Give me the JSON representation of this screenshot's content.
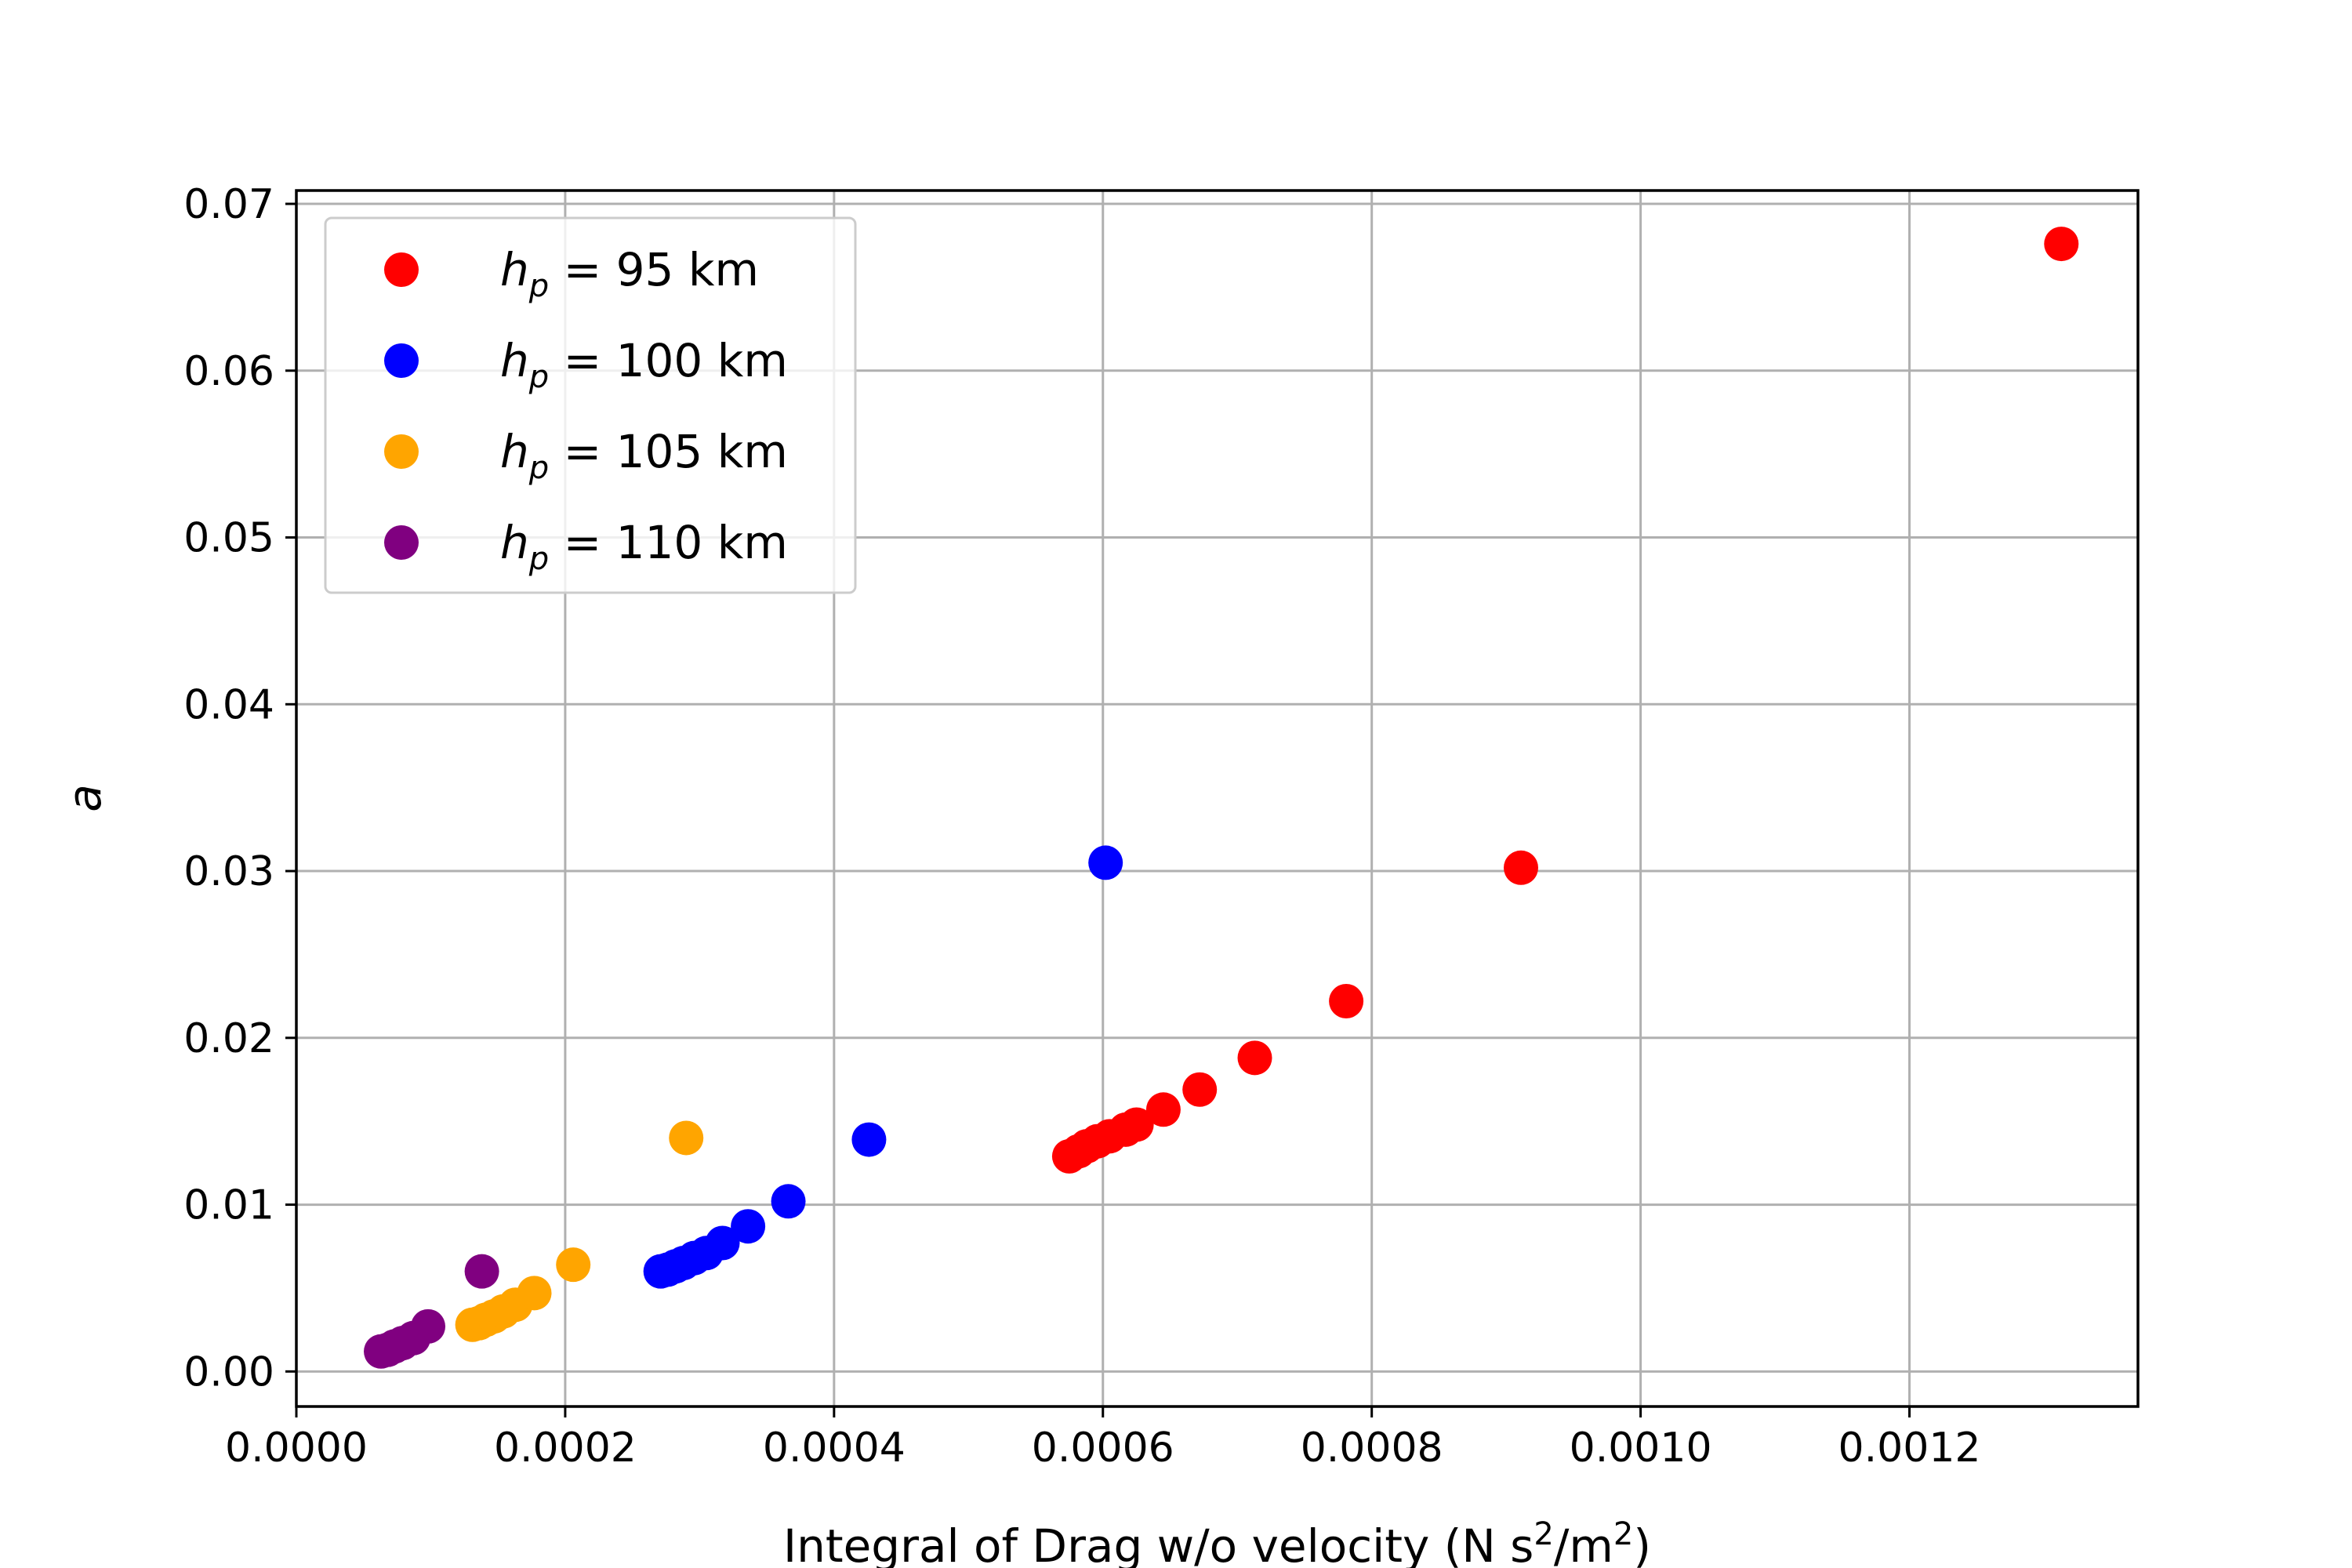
{
  "chart_data": {
    "type": "scatter",
    "title": "",
    "xlabel": "Integral of Drag w/o velocity (N s",
    "xlabel_sup1": "2",
    "xlabel_mid": "/m",
    "xlabel_sup2": "2",
    "xlabel_end": ")",
    "ylabel": "a",
    "xlim": [
      0.0,
      0.00137
    ],
    "ylim": [
      -0.0021,
      0.0708
    ],
    "xticks": [
      0.0,
      0.0002,
      0.0004,
      0.0006,
      0.0008,
      0.001,
      0.0012
    ],
    "xtick_labels": [
      "0.0000",
      "0.0002",
      "0.0004",
      "0.0006",
      "0.0008",
      "0.0010",
      "0.0012"
    ],
    "yticks": [
      0.0,
      0.01,
      0.02,
      0.03,
      0.04,
      0.05,
      0.06,
      0.07
    ],
    "ytick_labels": [
      "0.00",
      "0.01",
      "0.02",
      "0.03",
      "0.04",
      "0.05",
      "0.06",
      "0.07"
    ],
    "grid": true,
    "legend_position": "top-left",
    "series": [
      {
        "name": "h_p = 95 km",
        "legend_var": "h",
        "legend_sub": "p",
        "legend_rest": " = 95 km",
        "color": "#ff0000",
        "points": [
          [
            0.000575,
            0.0129
          ],
          [
            0.000582,
            0.0132
          ],
          [
            0.000588,
            0.0135
          ],
          [
            0.000596,
            0.0138
          ],
          [
            0.000605,
            0.0141
          ],
          [
            0.000617,
            0.0145
          ],
          [
            0.000625,
            0.0148
          ],
          [
            0.000645,
            0.0157
          ],
          [
            0.000672,
            0.0169
          ],
          [
            0.000713,
            0.0188
          ],
          [
            0.000781,
            0.0222
          ],
          [
            0.000911,
            0.0302
          ],
          [
            0.001313,
            0.0676
          ]
        ]
      },
      {
        "name": "h_p = 100 km",
        "legend_var": "h",
        "legend_sub": "p",
        "legend_rest": " = 100 km",
        "color": "#0000ff",
        "points": [
          [
            0.000271,
            0.006
          ],
          [
            0.000276,
            0.0061
          ],
          [
            0.000282,
            0.0063
          ],
          [
            0.000288,
            0.0065
          ],
          [
            0.000296,
            0.0068
          ],
          [
            0.000305,
            0.0071
          ],
          [
            0.000317,
            0.0077
          ],
          [
            0.000336,
            0.0087
          ],
          [
            0.000366,
            0.0102
          ],
          [
            0.000426,
            0.0139
          ],
          [
            0.000602,
            0.0305
          ]
        ]
      },
      {
        "name": "h_p = 105 km",
        "legend_var": "h",
        "legend_sub": "p",
        "legend_rest": " = 105 km",
        "color": "#ffa500",
        "points": [
          [
            0.000131,
            0.0028
          ],
          [
            0.000136,
            0.0029
          ],
          [
            0.000141,
            0.0031
          ],
          [
            0.000147,
            0.0033
          ],
          [
            0.000154,
            0.0036
          ],
          [
            0.000163,
            0.004
          ],
          [
            0.000177,
            0.0047
          ],
          [
            0.000206,
            0.0064
          ],
          [
            0.00029,
            0.014
          ]
        ]
      },
      {
        "name": "h_p = 110 km",
        "legend_var": "h",
        "legend_sub": "p",
        "legend_rest": " = 110 km",
        "color": "#800080",
        "points": [
          [
            6.3e-05,
            0.0012
          ],
          [
            6.8e-05,
            0.0013
          ],
          [
            7.3e-05,
            0.0015
          ],
          [
            7.9e-05,
            0.0017
          ],
          [
            8.7e-05,
            0.002
          ],
          [
            9.8e-05,
            0.0027
          ],
          [
            0.000138,
            0.006
          ]
        ]
      }
    ]
  }
}
